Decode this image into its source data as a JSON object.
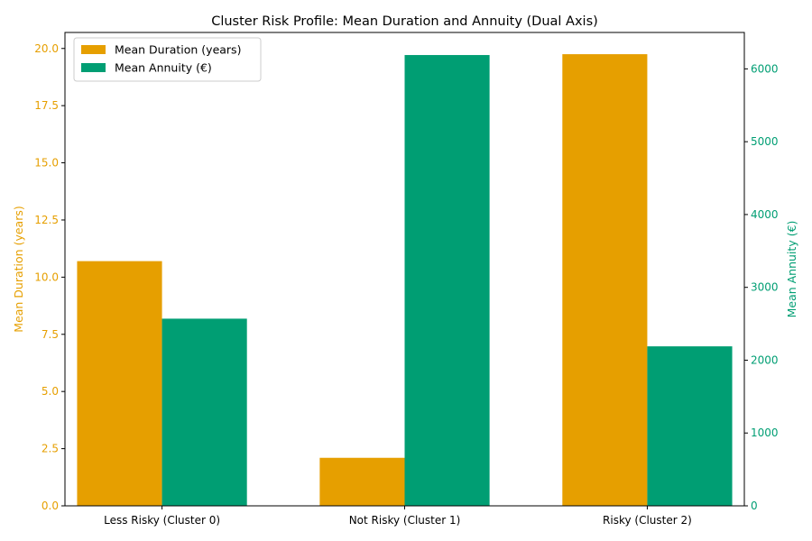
{
  "chart_data": {
    "type": "bar",
    "title": "Cluster Risk Profile: Mean Duration and Annuity (Dual Axis)",
    "categories": [
      "Less Risky (Cluster 0)",
      "Not Risky (Cluster 1)",
      "Risky (Cluster 2)"
    ],
    "series": [
      {
        "name": "Mean Duration (years)",
        "axis": "left",
        "color": "#E69F00",
        "values": [
          10.7,
          2.1,
          19.75
        ]
      },
      {
        "name": "Mean Annuity (€)",
        "axis": "right",
        "color": "#009E73",
        "values": [
          2570,
          6190,
          2190
        ]
      }
    ],
    "y_left": {
      "label": "Mean Duration (years)",
      "ylim": [
        0,
        20.7
      ],
      "ticks": [
        "0.0",
        "2.5",
        "5.0",
        "7.5",
        "10.0",
        "12.5",
        "15.0",
        "17.5",
        "20.0"
      ],
      "color": "#E69F00"
    },
    "y_right": {
      "label": "Mean Annuity (€)",
      "ylim": [
        0,
        6500
      ],
      "ticks": [
        "0",
        "1000",
        "2000",
        "3000",
        "4000",
        "5000",
        "6000"
      ],
      "color": "#009E73"
    },
    "grid": false,
    "legend_position": "top-left"
  }
}
